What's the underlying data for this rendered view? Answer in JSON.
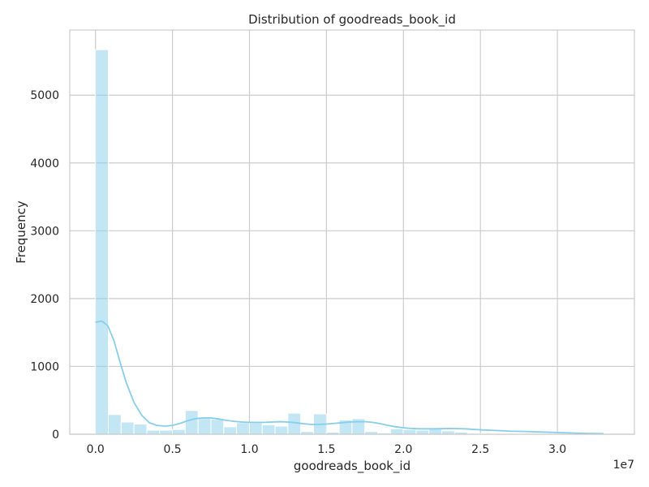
{
  "chart_data": {
    "type": "bar",
    "title": "Distribution of goodreads_book_id",
    "xlabel": "goodreads_book_id",
    "ylabel": "Frequency",
    "x_offset_label": "1e7",
    "xlim": [
      -0.167,
      3.5
    ],
    "ylim": [
      0,
      5960
    ],
    "x_ticks": [
      0.0,
      0.5,
      1.0,
      1.5,
      2.0,
      2.5,
      3.0
    ],
    "x_tick_labels": [
      "0.0",
      "0.5",
      "1.0",
      "1.5",
      "2.0",
      "2.5",
      "3.0"
    ],
    "y_ticks": [
      0,
      1000,
      2000,
      3000,
      4000,
      5000
    ],
    "y_tick_labels": [
      "0",
      "1000",
      "2000",
      "3000",
      "4000",
      "5000"
    ],
    "grid": true,
    "bin_start": 0.0,
    "bin_width": 0.0833,
    "values": [
      5670,
      290,
      180,
      150,
      60,
      60,
      70,
      350,
      230,
      220,
      110,
      170,
      170,
      140,
      120,
      310,
      40,
      300,
      30,
      210,
      230,
      40,
      20,
      80,
      70,
      60,
      90,
      50,
      30,
      10,
      10,
      10,
      5,
      5,
      5,
      5,
      3,
      3,
      2,
      2
    ],
    "kde": {
      "x": [
        0.0,
        0.04,
        0.08,
        0.12,
        0.16,
        0.2,
        0.25,
        0.3,
        0.35,
        0.4,
        0.45,
        0.5,
        0.55,
        0.6,
        0.65,
        0.7,
        0.75,
        0.8,
        0.85,
        0.9,
        0.95,
        1.0,
        1.05,
        1.1,
        1.15,
        1.2,
        1.25,
        1.3,
        1.35,
        1.4,
        1.45,
        1.5,
        1.55,
        1.6,
        1.65,
        1.7,
        1.75,
        1.8,
        1.85,
        1.9,
        1.95,
        2.0,
        2.05,
        2.1,
        2.2,
        2.3,
        2.4,
        2.5,
        2.6,
        2.7,
        2.8,
        2.9,
        3.0,
        3.1,
        3.2,
        3.3
      ],
      "y": [
        1650,
        1670,
        1600,
        1380,
        1060,
        760,
        470,
        280,
        170,
        130,
        120,
        130,
        160,
        200,
        230,
        240,
        240,
        225,
        205,
        190,
        180,
        175,
        175,
        175,
        180,
        185,
        180,
        170,
        155,
        145,
        145,
        150,
        160,
        170,
        180,
        185,
        185,
        175,
        155,
        130,
        110,
        95,
        85,
        80,
        80,
        85,
        80,
        65,
        55,
        45,
        40,
        32,
        25,
        18,
        12,
        8
      ]
    },
    "colors": {
      "bar_fill": "#87ceeb",
      "bar_fill_opacity": 0.5,
      "bar_edge": "#ffffff",
      "kde_line": "#87ceeb",
      "grid": "#cccccc",
      "spine": "#cccccc"
    }
  }
}
